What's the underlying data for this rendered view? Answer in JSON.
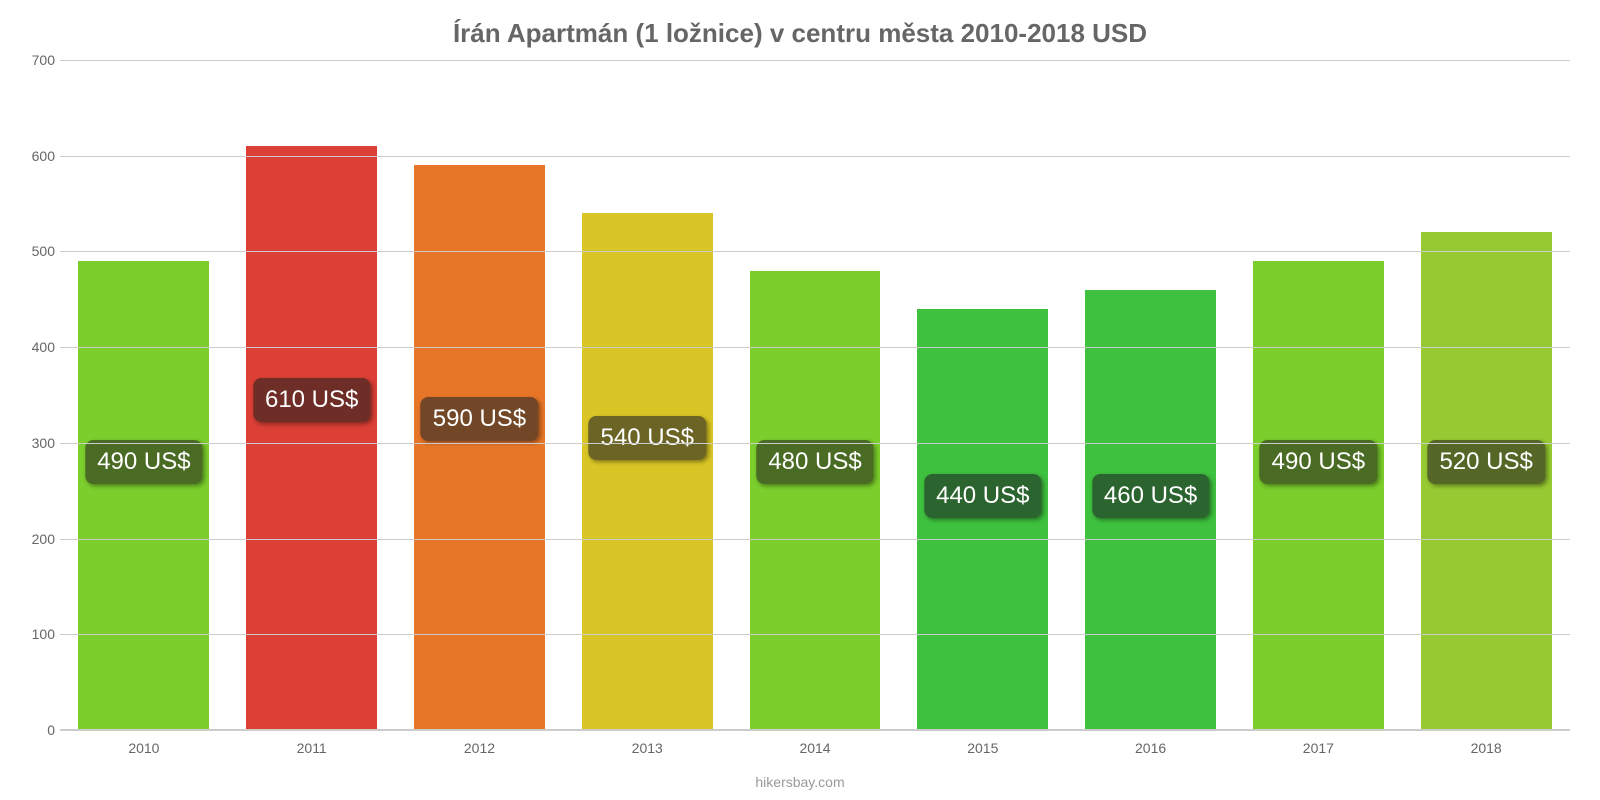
{
  "chart": {
    "type": "bar",
    "title": "Írán Apartmán (1 ložnice) v centru města 2010-2018 USD",
    "title_color": "#666666",
    "title_fontsize": 26,
    "attribution": "hikersbay.com",
    "attribution_color": "#999999",
    "background_color": "#ffffff",
    "grid_color": "#cccccc",
    "axis_tick_color": "#666666",
    "x_label_color": "#666666",
    "ylim": [
      0,
      700
    ],
    "ytick_step": 100,
    "yticks": [
      0,
      100,
      200,
      300,
      400,
      500,
      600,
      700
    ],
    "categories": [
      "2010",
      "2011",
      "2012",
      "2013",
      "2014",
      "2015",
      "2016",
      "2017",
      "2018"
    ],
    "values": [
      490,
      610,
      590,
      540,
      480,
      440,
      460,
      490,
      520
    ],
    "value_labels": [
      "490 US$",
      "610 US$",
      "590 US$",
      "540 US$",
      "480 US$",
      "440 US$",
      "460 US$",
      "490 US$",
      "520 US$"
    ],
    "bar_colors": [
      "#7bce2c",
      "#db3f35",
      "#e87628",
      "#d9c626",
      "#7bce2c",
      "#3ec13e",
      "#3ec13e",
      "#7bce2c",
      "#97ca32"
    ],
    "badge_bg_colors": [
      "#4a6b23",
      "#6e2e27",
      "#724727",
      "#6b6425",
      "#4a6b23",
      "#2c6430",
      "#2c6430",
      "#4a6b23",
      "#556727"
    ],
    "badge_text_color": "#ffffff",
    "badge_fontsize": 24,
    "badge_offsets_from_ymax": [
      420,
      355,
      375,
      395,
      420,
      455,
      455,
      420,
      420
    ],
    "bar_width_ratio": 0.78,
    "x_label_fontsize": 14,
    "y_label_fontsize": 14
  }
}
